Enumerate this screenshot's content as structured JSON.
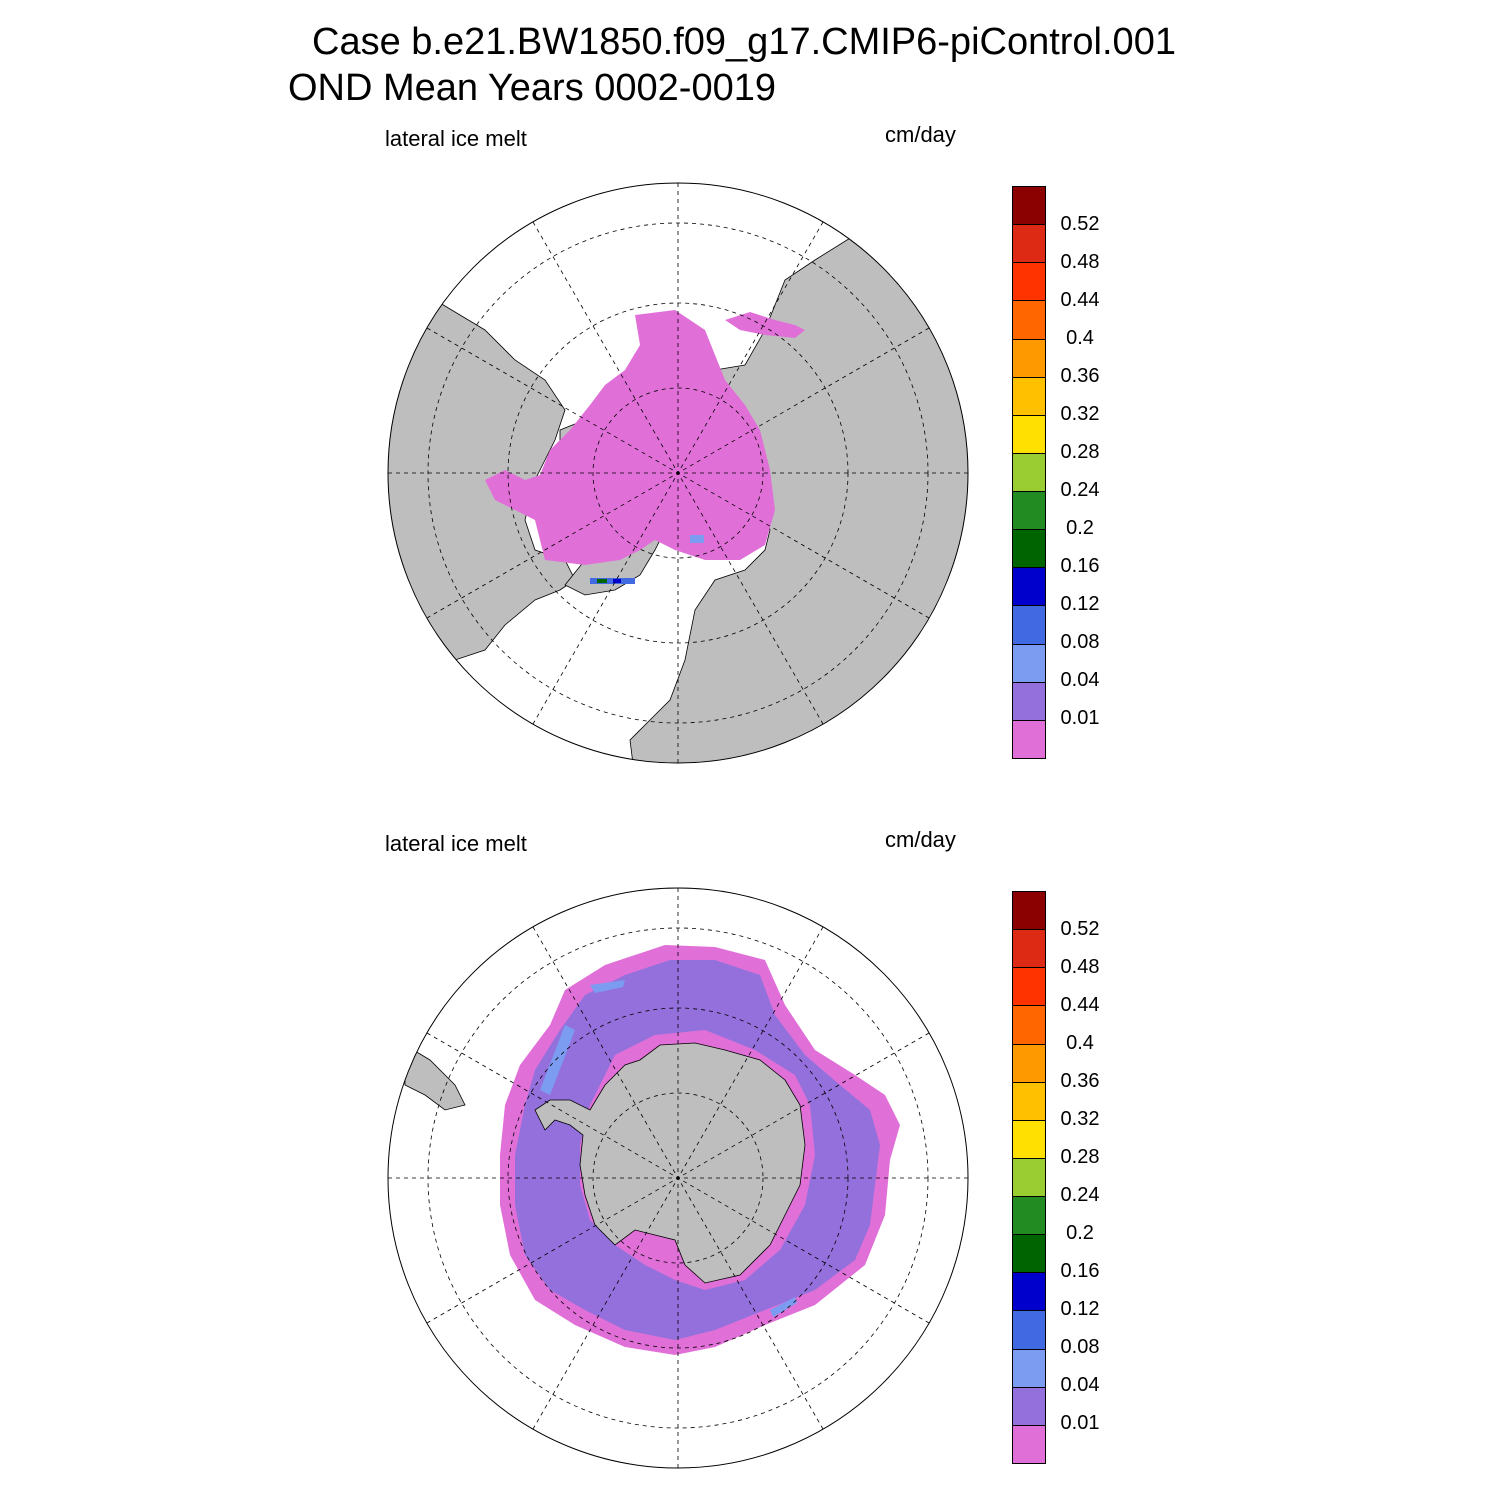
{
  "title": {
    "line1": "Case b.e21.BW1850.f09_g17.CMIP6-piControl.001",
    "line2": "OND Mean    Years 0002-0019"
  },
  "colors": {
    "land": "#bebebe",
    "ocean": "#ffffff",
    "palette": [
      "#e070d8",
      "#9370db",
      "#7b9cf0",
      "#4169e1",
      "#0000cd",
      "#006400",
      "#228b22",
      "#9acd32",
      "#ffe000",
      "#ffc000",
      "#ff9900",
      "#ff6600",
      "#ff3300",
      "#dd2a14",
      "#8b0000"
    ]
  },
  "panels": [
    {
      "id": "north",
      "variable_label": "lateral ice melt",
      "units_label": "cm/day",
      "colorbar_ticks": [
        "0.52",
        "0.48",
        "0.44",
        "0.4",
        "0.36",
        "0.32",
        "0.28",
        "0.24",
        "0.2",
        "0.16",
        "0.12",
        "0.08",
        "0.04",
        "0.01"
      ]
    },
    {
      "id": "south",
      "variable_label": "lateral ice melt",
      "units_label": "cm/day",
      "colorbar_ticks": [
        "0.52",
        "0.48",
        "0.44",
        "0.4",
        "0.36",
        "0.32",
        "0.28",
        "0.24",
        "0.2",
        "0.16",
        "0.12",
        "0.08",
        "0.04",
        "0.01"
      ]
    }
  ]
}
